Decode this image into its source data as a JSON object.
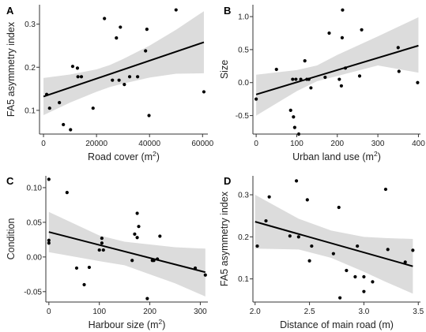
{
  "chart_data": [
    {
      "panel": "A",
      "type": "scatter",
      "xlabel": "Road cover (m",
      "xlabel_sup": "2",
      "xlabel_tail": ")",
      "ylabel": "FA5 asymmetry index",
      "xlim": [
        -1500,
        62000
      ],
      "ylim": [
        0.045,
        0.345
      ],
      "xticks": [
        0,
        20000,
        40000,
        60000
      ],
      "yticks": [
        0.1,
        0.2,
        0.3
      ],
      "xtick_labels": [
        "0",
        "20000",
        "40000",
        "60000"
      ],
      "ytick_labels": [
        "0.1",
        "0.2",
        "0.3"
      ],
      "points": [
        [
          1200,
          0.137
        ],
        [
          2300,
          0.105
        ],
        [
          6000,
          0.118
        ],
        [
          7500,
          0.067
        ],
        [
          10200,
          0.055
        ],
        [
          11000,
          0.202
        ],
        [
          12800,
          0.198
        ],
        [
          13000,
          0.178
        ],
        [
          14300,
          0.178
        ],
        [
          18700,
          0.105
        ],
        [
          23000,
          0.313
        ],
        [
          26000,
          0.17
        ],
        [
          27500,
          0.268
        ],
        [
          28500,
          0.17
        ],
        [
          29000,
          0.293
        ],
        [
          30500,
          0.16
        ],
        [
          32500,
          0.178
        ],
        [
          35500,
          0.178
        ],
        [
          38500,
          0.238
        ],
        [
          39000,
          0.288
        ],
        [
          39800,
          0.088
        ],
        [
          50000,
          0.333
        ],
        [
          60500,
          0.143
        ]
      ],
      "fit": [
        [
          0,
          0.132
        ],
        [
          60500,
          0.258
        ]
      ],
      "ci_upper": [
        [
          0,
          0.175
        ],
        [
          10000,
          0.183
        ],
        [
          20000,
          0.195
        ],
        [
          25000,
          0.205
        ],
        [
          30000,
          0.219
        ],
        [
          40000,
          0.25
        ],
        [
          50000,
          0.287
        ],
        [
          60500,
          0.33
        ]
      ],
      "ci_lower": [
        [
          0,
          0.089
        ],
        [
          10000,
          0.118
        ],
        [
          20000,
          0.143
        ],
        [
          25000,
          0.154
        ],
        [
          30000,
          0.162
        ],
        [
          40000,
          0.176
        ],
        [
          50000,
          0.185
        ],
        [
          60500,
          0.186
        ]
      ]
    },
    {
      "panel": "B",
      "type": "scatter",
      "xlabel": "Urban land use (m",
      "xlabel_sup": "2",
      "xlabel_tail": ")",
      "ylabel": "Size",
      "xlim": [
        -8,
        405
      ],
      "ylim": [
        -0.78,
        1.18
      ],
      "xticks": [
        0,
        100,
        200,
        300,
        400
      ],
      "yticks": [
        -0.5,
        0.0,
        0.5,
        1.0
      ],
      "xtick_labels": [
        "0",
        "100",
        "200",
        "300",
        "400"
      ],
      "ytick_labels": [
        "-0.5",
        "0.0",
        "0.5",
        "1.0"
      ],
      "points": [
        [
          0,
          -0.25
        ],
        [
          50,
          0.2
        ],
        [
          85,
          -0.42
        ],
        [
          90,
          0.05
        ],
        [
          92,
          -0.52
        ],
        [
          95,
          -0.68
        ],
        [
          98,
          0.05
        ],
        [
          105,
          -0.78
        ],
        [
          110,
          0.05
        ],
        [
          120,
          0.33
        ],
        [
          125,
          0.05
        ],
        [
          130,
          0.05
        ],
        [
          135,
          -0.08
        ],
        [
          170,
          0.08
        ],
        [
          180,
          0.75
        ],
        [
          205,
          0.05
        ],
        [
          210,
          -0.05
        ],
        [
          212,
          0.68
        ],
        [
          213,
          1.1
        ],
        [
          220,
          0.22
        ],
        [
          255,
          0.1
        ],
        [
          260,
          0.8
        ],
        [
          350,
          0.53
        ],
        [
          352,
          0.17
        ],
        [
          398,
          0.0
        ]
      ],
      "fit": [
        [
          0,
          -0.18
        ],
        [
          400,
          0.56
        ]
      ],
      "ci_upper": [
        [
          0,
          0.12
        ],
        [
          100,
          0.19
        ],
        [
          150,
          0.26
        ],
        [
          200,
          0.42
        ],
        [
          300,
          0.7
        ],
        [
          400,
          0.99
        ]
      ],
      "ci_lower": [
        [
          0,
          -0.5
        ],
        [
          100,
          -0.13
        ],
        [
          150,
          0.02
        ],
        [
          200,
          0.1
        ],
        [
          300,
          0.26
        ],
        [
          400,
          0.15
        ]
      ]
    },
    {
      "panel": "C",
      "type": "scatter",
      "xlabel": "Harbour size (m",
      "xlabel_sup": "2",
      "xlabel_tail": ")",
      "ylabel": "Condition",
      "xlim": [
        -6,
        315
      ],
      "ylim": [
        -0.065,
        0.117
      ],
      "xticks": [
        0,
        100,
        200,
        300
      ],
      "yticks": [
        -0.05,
        0.0,
        0.05,
        0.1
      ],
      "xtick_labels": [
        "0",
        "100",
        "200",
        "300"
      ],
      "ytick_labels": [
        "-0.05",
        "0.00",
        "0.05",
        "0.10"
      ],
      "points": [
        [
          0,
          0.02
        ],
        [
          0,
          0.024
        ],
        [
          0,
          0.112
        ],
        [
          36,
          0.093
        ],
        [
          55,
          -0.016
        ],
        [
          70,
          -0.04
        ],
        [
          80,
          -0.015
        ],
        [
          100,
          0.01
        ],
        [
          105,
          0.02
        ],
        [
          105,
          0.027
        ],
        [
          108,
          0.01
        ],
        [
          165,
          -0.005
        ],
        [
          170,
          0.033
        ],
        [
          175,
          0.028
        ],
        [
          175,
          0.063
        ],
        [
          178,
          0.044
        ],
        [
          195,
          -0.06
        ],
        [
          205,
          -0.005
        ],
        [
          208,
          -0.005
        ],
        [
          215,
          -0.003
        ],
        [
          220,
          0.03
        ],
        [
          290,
          -0.016
        ],
        [
          310,
          -0.026
        ]
      ],
      "fit": [
        [
          0,
          0.036
        ],
        [
          310,
          -0.022
        ]
      ],
      "ci_upper": [
        [
          0,
          0.065
        ],
        [
          100,
          0.031
        ],
        [
          150,
          0.022
        ],
        [
          200,
          0.018
        ],
        [
          250,
          0.014
        ],
        [
          310,
          0.012
        ]
      ],
      "ci_lower": [
        [
          0,
          0.007
        ],
        [
          100,
          -0.006
        ],
        [
          150,
          -0.012
        ],
        [
          200,
          -0.025
        ],
        [
          250,
          -0.038
        ],
        [
          310,
          -0.057
        ]
      ]
    },
    {
      "panel": "D",
      "type": "scatter",
      "xlabel": "Distance of main road (m)",
      "xlabel_sup": "",
      "xlabel_tail": "",
      "ylabel": "FA5 asymmetry index",
      "xlim": [
        1.98,
        3.52
      ],
      "ylim": [
        0.045,
        0.345
      ],
      "xticks": [
        2.0,
        2.5,
        3.0,
        3.5
      ],
      "yticks": [
        0.1,
        0.2,
        0.3
      ],
      "xtick_labels": [
        "2.0",
        "2.5",
        "3.0",
        "3.5"
      ],
      "ytick_labels": [
        "0.1",
        "0.2",
        "0.3"
      ],
      "points": [
        [
          2.02,
          0.178
        ],
        [
          2.1,
          0.238
        ],
        [
          2.13,
          0.295
        ],
        [
          2.32,
          0.202
        ],
        [
          2.38,
          0.333
        ],
        [
          2.4,
          0.2
        ],
        [
          2.48,
          0.288
        ],
        [
          2.5,
          0.143
        ],
        [
          2.52,
          0.178
        ],
        [
          2.72,
          0.16
        ],
        [
          2.77,
          0.27
        ],
        [
          2.78,
          0.055
        ],
        [
          2.84,
          0.12
        ],
        [
          2.92,
          0.105
        ],
        [
          2.94,
          0.178
        ],
        [
          3.0,
          0.105
        ],
        [
          3.0,
          0.07
        ],
        [
          3.08,
          0.093
        ],
        [
          3.2,
          0.313
        ],
        [
          3.22,
          0.17
        ],
        [
          3.38,
          0.14
        ],
        [
          3.45,
          0.168
        ]
      ],
      "fit": [
        [
          2.0,
          0.236
        ],
        [
          3.45,
          0.13
        ]
      ],
      "ci_upper": [
        [
          2.0,
          0.3
        ],
        [
          2.4,
          0.243
        ],
        [
          2.7,
          0.215
        ],
        [
          3.0,
          0.2
        ],
        [
          3.2,
          0.197
        ],
        [
          3.45,
          0.195
        ]
      ],
      "ci_lower": [
        [
          2.0,
          0.172
        ],
        [
          2.4,
          0.17
        ],
        [
          2.7,
          0.15
        ],
        [
          3.0,
          0.117
        ],
        [
          3.2,
          0.093
        ],
        [
          3.45,
          0.065
        ]
      ]
    }
  ]
}
